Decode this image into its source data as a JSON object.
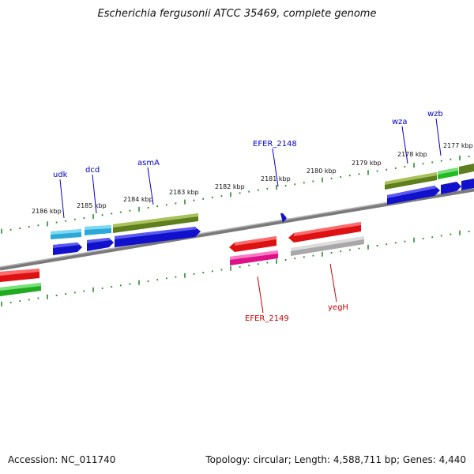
{
  "title": "Escherichia fergusonii ATCC 35469, complete genome",
  "footer": {
    "accession": "Accession: NC_011740",
    "summary": "Topology: circular; Length: 4,588,711 bp; Genes: 4,440"
  },
  "colors": {
    "backbone": "#8a8a8a",
    "ticks": "#2e8b2e",
    "label_forward": "#0000cc",
    "label_reverse": "#cc0000",
    "olive": "#6b8e23",
    "cyan": "#29b6e8",
    "green": "#33cc33",
    "red": "#ee1111",
    "magenta": "#e8188a",
    "gray": "#bbbbbb",
    "blue": "#1111dd"
  },
  "kbp_labels": [
    "2186 kbp",
    "2185 kbp",
    "2184 kbp",
    "2183 kbp",
    "2182 kbp",
    "2181 kbp",
    "2180 kbp",
    "2179 kbp",
    "2178 kbp",
    "2177 kbp"
  ],
  "gene_labels": {
    "forward": [
      "udk",
      "dcd",
      "asmA",
      "EFER_2148",
      "wza",
      "wzb"
    ],
    "reverse": [
      "EFER_2149",
      "yegH"
    ]
  }
}
